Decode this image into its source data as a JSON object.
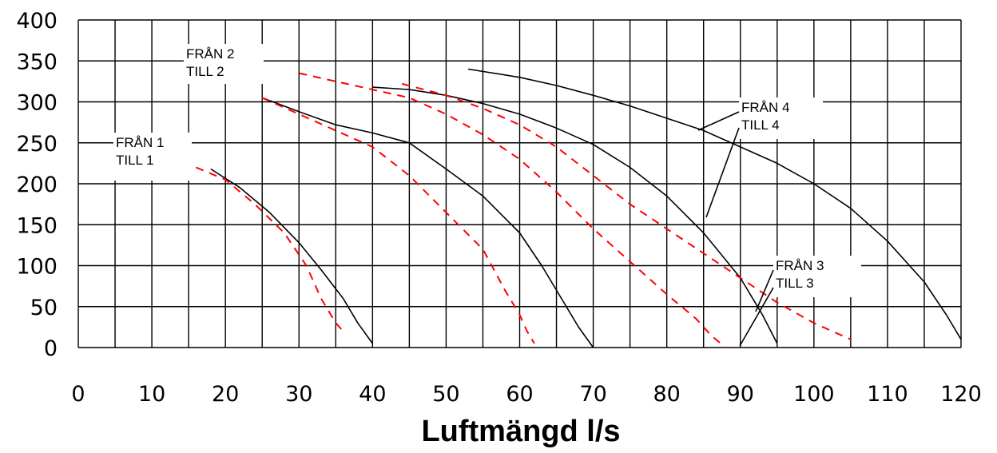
{
  "chart_data": {
    "type": "line",
    "title": "",
    "xlabel": "Luftmängd l/s",
    "ylabel": "",
    "xlim": [
      0,
      120
    ],
    "ylim": [
      0,
      400
    ],
    "x_ticks": [
      "0",
      "10",
      "20",
      "30",
      "40",
      "50",
      "60",
      "70",
      "80",
      "90",
      "100",
      "110",
      "120"
    ],
    "y_ticks": [
      "0",
      "50",
      "100",
      "150",
      "200",
      "250",
      "300",
      "350",
      "400"
    ],
    "grid": true,
    "colors": {
      "supply": "#000000",
      "exhaust": "#ff0000",
      "grid": "#000000"
    },
    "series": [
      {
        "style": "supply",
        "x": [
          18,
          22,
          26,
          30,
          33,
          36,
          38,
          40
        ],
        "y": [
          218,
          195,
          165,
          128,
          95,
          60,
          30,
          5
        ]
      },
      {
        "style": "exhaust",
        "x": [
          16,
          20,
          24,
          28,
          31,
          33,
          35,
          36
        ],
        "y": [
          220,
          205,
          175,
          140,
          100,
          60,
          30,
          20
        ]
      },
      {
        "style": "supply",
        "x": [
          25,
          30,
          35,
          40,
          45,
          50,
          55,
          60,
          63,
          66,
          68,
          70
        ],
        "y": [
          305,
          288,
          272,
          262,
          250,
          218,
          185,
          140,
          100,
          55,
          25,
          0
        ]
      },
      {
        "style": "exhaust",
        "x": [
          25,
          30,
          35,
          40,
          45,
          50,
          55,
          58,
          60,
          61,
          62
        ],
        "y": [
          305,
          285,
          265,
          245,
          210,
          165,
          120,
          70,
          40,
          20,
          5
        ]
      },
      {
        "style": "supply",
        "x": [
          40,
          45,
          50,
          55,
          60,
          65,
          70,
          75,
          80,
          85,
          90,
          93,
          95
        ],
        "y": [
          318,
          315,
          308,
          298,
          285,
          268,
          248,
          220,
          185,
          140,
          85,
          40,
          5
        ]
      },
      {
        "style": "exhaust",
        "x": [
          30,
          35,
          40,
          45,
          50,
          55,
          60,
          65,
          70,
          75,
          80,
          84,
          86,
          88
        ],
        "y": [
          335,
          325,
          315,
          305,
          285,
          260,
          230,
          190,
          145,
          105,
          65,
          35,
          15,
          0
        ]
      },
      {
        "style": "supply",
        "x": [
          53,
          60,
          65,
          70,
          75,
          80,
          85,
          90,
          95,
          100,
          105,
          110,
          115,
          118,
          120
        ],
        "y": [
          340,
          330,
          320,
          308,
          295,
          280,
          265,
          245,
          225,
          200,
          170,
          130,
          80,
          40,
          10
        ]
      },
      {
        "style": "exhaust",
        "x": [
          44,
          50,
          55,
          60,
          65,
          70,
          75,
          80,
          85,
          90,
          95,
          100,
          105
        ],
        "y": [
          322,
          308,
          292,
          272,
          245,
          210,
          175,
          145,
          115,
          85,
          55,
          30,
          10
        ]
      }
    ],
    "annotations": [
      {
        "lines": [
          "FRÅN 1",
          "TILL 1"
        ]
      },
      {
        "lines": [
          "FRÅN 2",
          "TILL 2"
        ]
      },
      {
        "lines": [
          "FRÅN 3",
          "TILL 3"
        ]
      },
      {
        "lines": [
          "FRÅN 4",
          "TILL 4"
        ]
      }
    ]
  }
}
